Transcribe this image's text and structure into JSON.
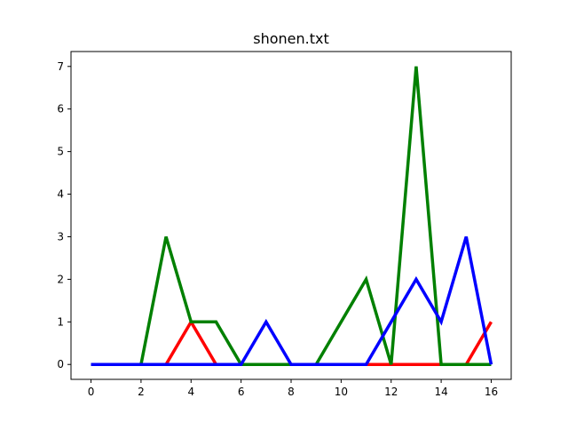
{
  "chart_data": {
    "type": "line",
    "title": "shonen.txt",
    "xlabel": "",
    "ylabel": "",
    "xlim": [
      -0.8,
      16.8
    ],
    "ylim": [
      -0.35,
      7.35
    ],
    "xticks": [
      0,
      2,
      4,
      6,
      8,
      10,
      12,
      14,
      16
    ],
    "yticks": [
      0,
      1,
      2,
      3,
      4,
      5,
      6,
      7
    ],
    "grid": false,
    "legend": "none",
    "x": [
      0,
      1,
      2,
      3,
      4,
      5,
      6,
      7,
      8,
      9,
      10,
      11,
      12,
      13,
      14,
      15,
      16
    ],
    "series": [
      {
        "color": "#ff0000",
        "values": [
          0,
          0,
          0,
          0,
          1,
          0,
          0,
          0,
          0,
          0,
          0,
          0,
          0,
          0,
          0,
          0,
          1
        ]
      },
      {
        "color": "#008000",
        "values": [
          0,
          0,
          0,
          3,
          1,
          1,
          0,
          0,
          0,
          0,
          1,
          2,
          0,
          7,
          0,
          0,
          0
        ]
      },
      {
        "color": "#0000ff",
        "values": [
          0,
          0,
          0,
          0,
          0,
          0,
          0,
          1,
          0,
          0,
          0,
          0,
          1,
          2,
          1,
          3,
          0
        ]
      }
    ]
  }
}
